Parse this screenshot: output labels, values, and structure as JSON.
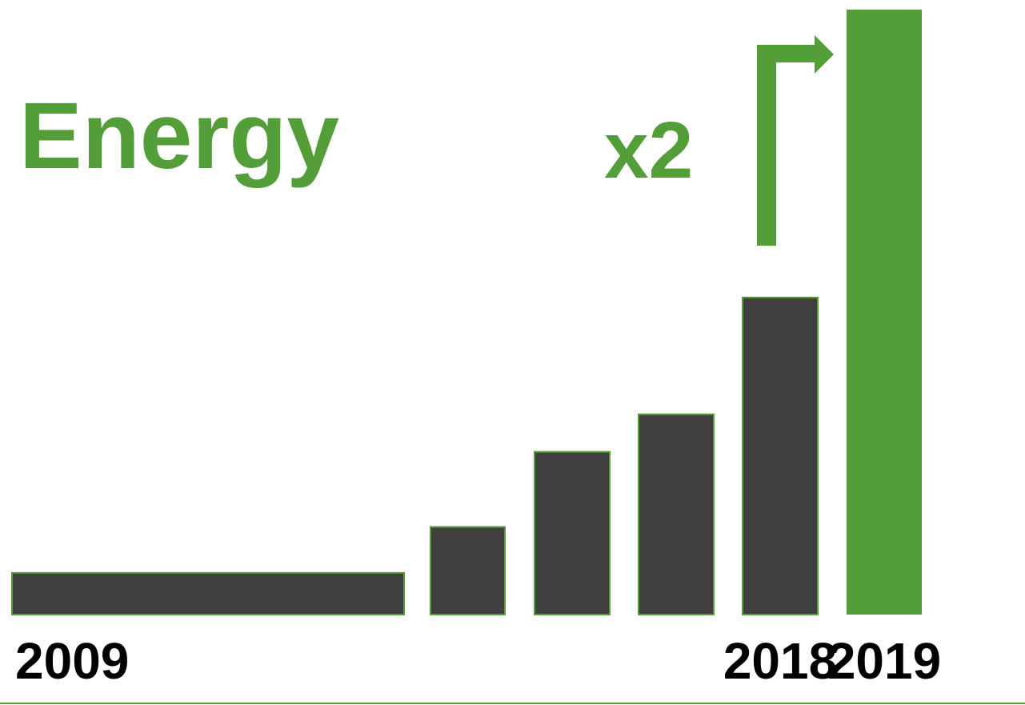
{
  "chart_data": {
    "type": "bar",
    "title": "Energy",
    "annotation": "x2",
    "categories": [
      "2009",
      "",
      "",
      "",
      "2018",
      "2019"
    ],
    "values": [
      1.0,
      2.1,
      3.9,
      4.8,
      7.6,
      14.5
    ],
    "highlight_index": 5,
    "ylim": [
      0,
      14.5
    ],
    "grid": false,
    "legend": "none",
    "colors": {
      "bar": "#404040",
      "bar_edge": "#549e39",
      "highlight": "#549e39",
      "title": "#549e39",
      "annotation": "#549e39",
      "arrow": "#549e39",
      "baseline": "#549e39",
      "tick": "#000000"
    }
  }
}
